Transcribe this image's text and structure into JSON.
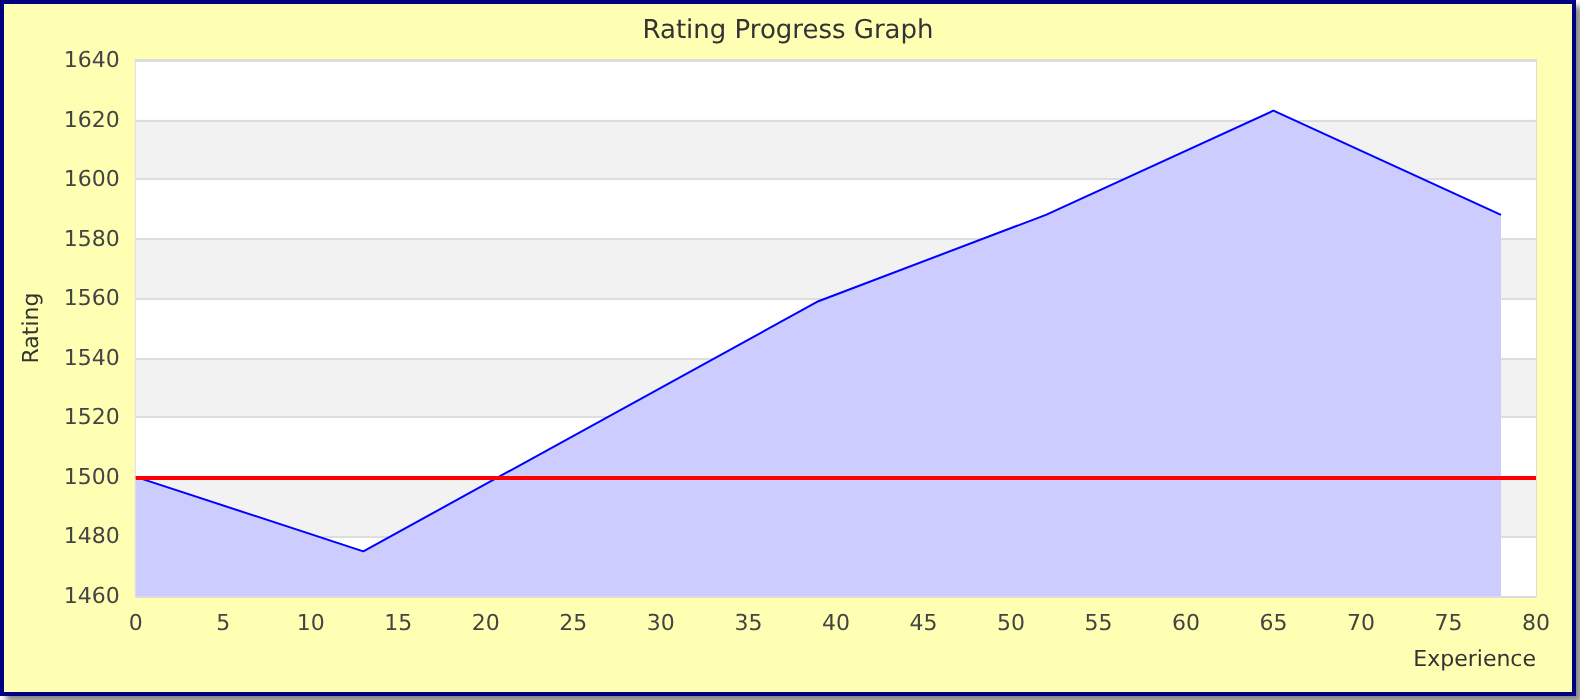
{
  "chart_data": {
    "type": "area",
    "title": "Rating Progress Graph",
    "xlabel": "Experience",
    "ylabel": "Rating",
    "x": [
      0,
      13,
      39,
      52,
      65,
      78
    ],
    "series": [
      {
        "color": "#0000ff",
        "values": [
          1500,
          1475,
          1559,
          1588,
          1623,
          1588
        ]
      }
    ],
    "xlim": [
      0,
      80
    ],
    "xticks": [
      0,
      5,
      10,
      15,
      20,
      25,
      30,
      35,
      40,
      45,
      50,
      55,
      60,
      65,
      70,
      75,
      80
    ],
    "ylim": [
      1460,
      1640
    ],
    "yticks": [
      1460,
      1480,
      1500,
      1520,
      1540,
      1560,
      1580,
      1600,
      1620,
      1640
    ],
    "ref_lines": [
      {
        "axis": "y",
        "value": 1500,
        "color": "#ff0000",
        "line_style": "solid"
      }
    ],
    "grid": "y",
    "marker": "none"
  }
}
